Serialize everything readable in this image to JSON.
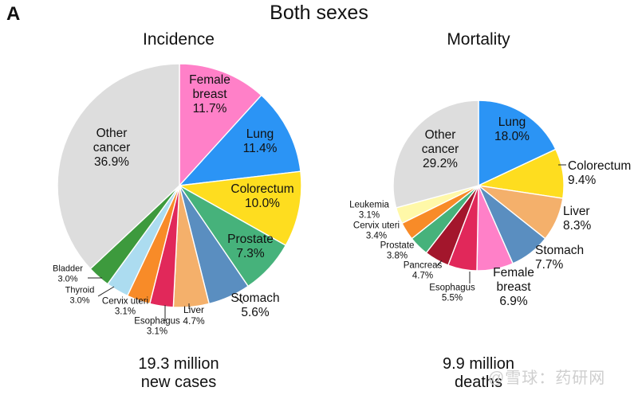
{
  "panel_letter": "A",
  "title": "Both sexes",
  "watermark": "@雪球：药研网",
  "chart_data": [
    {
      "type": "pie",
      "title": "Incidence",
      "total_line1": "19.3 million",
      "total_line2": "new cases",
      "slices": [
        {
          "name": "Female breast",
          "value": 11.7,
          "label": "11.7%",
          "color": "#ff80c8"
        },
        {
          "name": "Lung",
          "value": 11.4,
          "label": "11.4%",
          "color": "#2b94f5"
        },
        {
          "name": "Colorectum",
          "value": 10.0,
          "label": "10.0%",
          "color": "#fedd1f"
        },
        {
          "name": "Prostate",
          "value": 7.3,
          "label": "7.3%",
          "color": "#46b27b"
        },
        {
          "name": "Stomach",
          "value": 5.6,
          "label": "5.6%",
          "color": "#5a8ec0"
        },
        {
          "name": "Liver",
          "value": 4.7,
          "label": "4.7%",
          "color": "#f4b06b"
        },
        {
          "name": "Esophagus",
          "value": 3.1,
          "label": "3.1%",
          "color": "#e1285a"
        },
        {
          "name": "Cervix uteri",
          "value": 3.1,
          "label": "3.1%",
          "color": "#f88b28"
        },
        {
          "name": "Thyroid",
          "value": 3.0,
          "label": "3.0%",
          "color": "#acdcf0"
        },
        {
          "name": "Bladder",
          "value": 3.0,
          "label": "3.0%",
          "color": "#3d9a3d"
        },
        {
          "name": "Other cancer",
          "value": 36.9,
          "label": "36.9%",
          "color": "#dddddd"
        }
      ]
    },
    {
      "type": "pie",
      "title": "Mortality",
      "total_line1": "9.9 million",
      "total_line2": "deaths",
      "slices": [
        {
          "name": "Lung",
          "value": 18.0,
          "label": "18.0%",
          "color": "#2b94f5"
        },
        {
          "name": "Colorectum",
          "value": 9.4,
          "label": "9.4%",
          "color": "#fedd1f"
        },
        {
          "name": "Liver",
          "value": 8.3,
          "label": "8.3%",
          "color": "#f4b06b"
        },
        {
          "name": "Stomach",
          "value": 7.7,
          "label": "7.7%",
          "color": "#5a8ec0"
        },
        {
          "name": "Female breast",
          "value": 6.9,
          "label": "6.9%",
          "color": "#ff80c8"
        },
        {
          "name": "Esophagus",
          "value": 5.5,
          "label": "5.5%",
          "color": "#e1285a"
        },
        {
          "name": "Pancreas",
          "value": 4.7,
          "label": "4.7%",
          "color": "#a3162c"
        },
        {
          "name": "Prostate",
          "value": 3.8,
          "label": "3.8%",
          "color": "#46b27b"
        },
        {
          "name": "Cervix uteri",
          "value": 3.4,
          "label": "3.4%",
          "color": "#f88b28"
        },
        {
          "name": "Leukemia",
          "value": 3.1,
          "label": "3.1%",
          "color": "#fff8a8"
        },
        {
          "name": "Other cancer",
          "value": 29.2,
          "label": "29.2%",
          "color": "#dddddd"
        }
      ]
    }
  ]
}
